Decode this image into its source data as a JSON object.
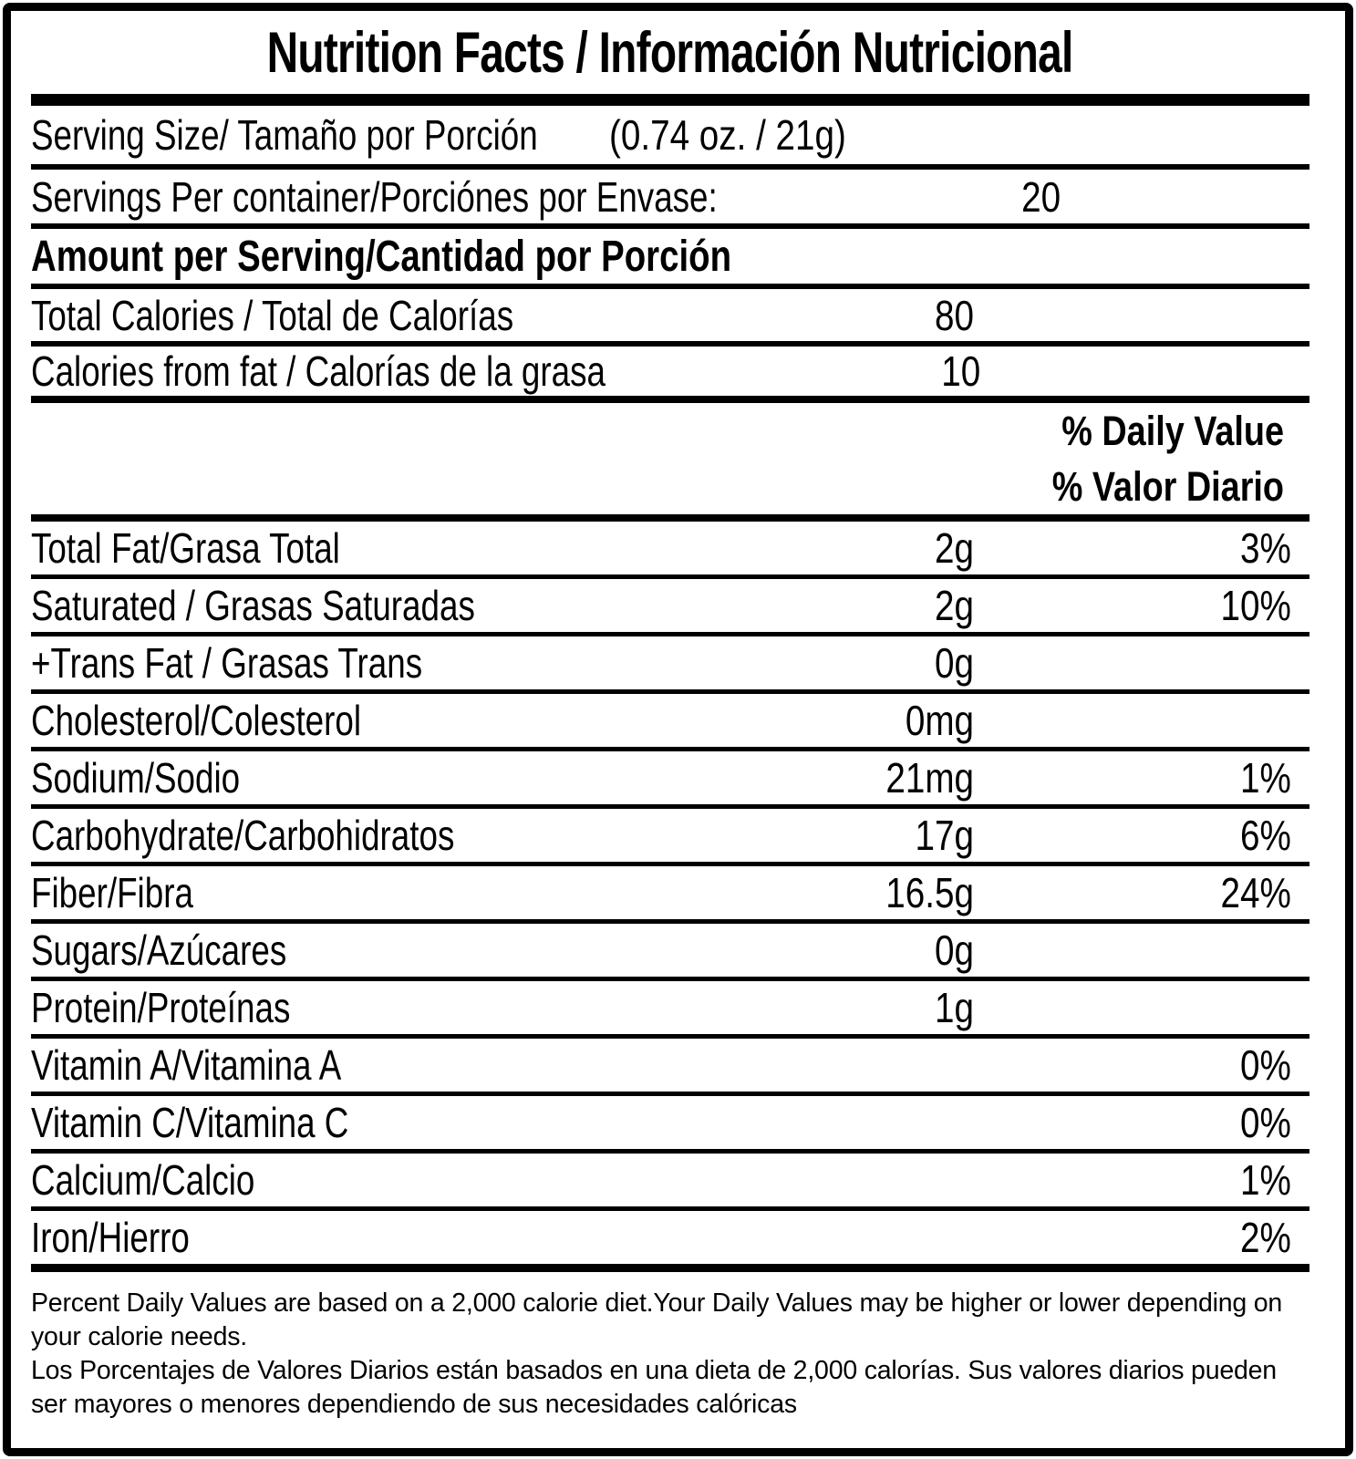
{
  "colors": {
    "text": "#000000",
    "background": "#ffffff"
  },
  "label": {
    "title": "Nutrition Facts / Información Nutricional",
    "serving_size": {
      "label": "Serving Size/ Tamaño por Porción",
      "value": "(0.74 oz. / 21g)"
    },
    "servings_per_container": {
      "label": "Servings Per container/Porciónes por Envase:",
      "value": "20"
    },
    "amount_per_serving_heading": "Amount per Serving/Cantidad por Porción",
    "calories": [
      {
        "label": "Total Calories / Total de Calorías",
        "value": "80"
      },
      {
        "label": "Calories from fat / Calorías de la grasa",
        "value": "10"
      }
    ],
    "daily_value_header": {
      "line1": "% Daily Value",
      "line2": "% Valor Diario"
    },
    "nutrients": [
      {
        "label": "Total Fat/Grasa Total",
        "amount": "2g",
        "dv": "3%"
      },
      {
        "label": "Saturated / Grasas Saturadas",
        "amount": "2g",
        "dv": "10%"
      },
      {
        "label": "+Trans Fat / Grasas Trans",
        "amount": "0g",
        "dv": ""
      },
      {
        "label": "Cholesterol/Colesterol",
        "amount": "0mg",
        "dv": ""
      },
      {
        "label": "Sodium/Sodio",
        "amount": "21mg",
        "dv": "1%"
      },
      {
        "label": "Carbohydrate/Carbohidratos",
        "amount": "17g",
        "dv": "6%"
      },
      {
        "label": "Fiber/Fibra",
        "amount": "16.5g",
        "dv": "24%"
      },
      {
        "label": "Sugars/Azúcares",
        "amount": "0g",
        "dv": ""
      },
      {
        "label": "Protein/Proteínas",
        "amount": "1g",
        "dv": ""
      },
      {
        "label": "Vitamin A/Vitamina A",
        "amount": "",
        "dv": "0%"
      },
      {
        "label": "Vitamin C/Vitamina C",
        "amount": "",
        "dv": "0%"
      },
      {
        "label": "Calcium/Calcio",
        "amount": "",
        "dv": "1%"
      },
      {
        "label": "Iron/Hierro",
        "amount": "",
        "dv": "2%"
      }
    ],
    "footnote_en": "Percent Daily Values are based on a 2,000 calorie diet.Your Daily Values may be higher or lower depending on your calorie needs.",
    "footnote_es": "Los Porcentajes de Valores Diarios están basados en una dieta de 2,000 calorías. Sus valores diarios pueden ser mayores o menores dependiendo de sus necesidades calóricas"
  }
}
